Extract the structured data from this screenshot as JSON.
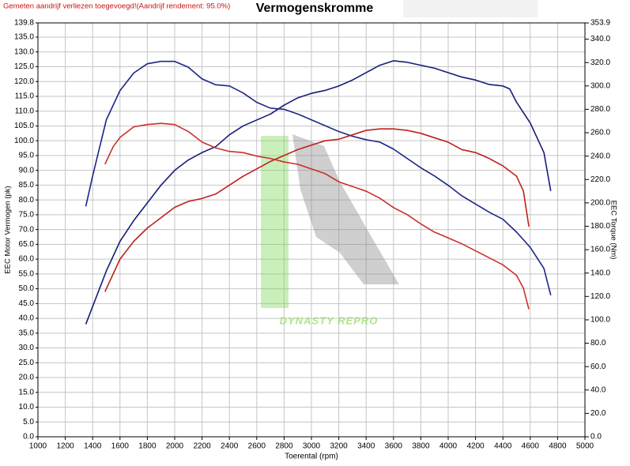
{
  "chart_data": {
    "type": "line",
    "title": "Vermogenskromme",
    "note": "Gemeten aandrijf verliezen toegevoegd!(Aandrijf rendement: 95.0%)",
    "x_label": "Toerental (rpm)",
    "y_label": "EEC Motor Vermogen (pk)",
    "y2_label": "EEC Torque (Nm)",
    "watermark": "DYNASTY REPRO",
    "grid": true,
    "xlim": [
      1000,
      5000
    ],
    "xticks": [
      1000,
      1200,
      1400,
      1600,
      1800,
      2000,
      2200,
      2400,
      2600,
      2800,
      3000,
      3200,
      3400,
      3600,
      3800,
      4000,
      4200,
      4400,
      4600,
      4800,
      5000
    ],
    "ylim": [
      0,
      139.8
    ],
    "yticks": [
      {
        "value": 0,
        "label": "0.0"
      },
      {
        "value": 5,
        "label": "5.0"
      },
      {
        "value": 10,
        "label": "10.0"
      },
      {
        "value": 15,
        "label": "15.0"
      },
      {
        "value": 20,
        "label": "20.0"
      },
      {
        "value": 25,
        "label": "25.0"
      },
      {
        "value": 30,
        "label": "30.0"
      },
      {
        "value": 35,
        "label": "35.0"
      },
      {
        "value": 40,
        "label": "40.0"
      },
      {
        "value": 45,
        "label": "45.0"
      },
      {
        "value": 50,
        "label": "50.0"
      },
      {
        "value": 55,
        "label": "55.0"
      },
      {
        "value": 60,
        "label": "60.0"
      },
      {
        "value": 65,
        "label": "65.0"
      },
      {
        "value": 70,
        "label": "70.0"
      },
      {
        "value": 75,
        "label": "75.0"
      },
      {
        "value": 80,
        "label": "80.0"
      },
      {
        "value": 85,
        "label": "85.0"
      },
      {
        "value": 90,
        "label": "90.0"
      },
      {
        "value": 95,
        "label": "95.0"
      },
      {
        "value": 100,
        "label": "100.0"
      },
      {
        "value": 105,
        "label": "105.0"
      },
      {
        "value": 110,
        "label": "110.0"
      },
      {
        "value": 115,
        "label": "115.0"
      },
      {
        "value": 120,
        "label": "120.0"
      },
      {
        "value": 125,
        "label": "125.0"
      },
      {
        "value": 130,
        "label": "130.0"
      },
      {
        "value": 135,
        "label": "135.0"
      },
      139.8
    ],
    "y2lim": [
      0,
      353.9
    ],
    "y2ticks": [
      {
        "value": 0,
        "label": "0.0"
      },
      {
        "value": 20,
        "label": "20.0"
      },
      {
        "value": 40,
        "label": "40.0"
      },
      {
        "value": 60,
        "label": "60.0"
      },
      {
        "value": 80,
        "label": "80.0"
      },
      {
        "value": 100,
        "label": "100.0"
      },
      {
        "value": 120,
        "label": "120.0"
      },
      {
        "value": 140,
        "label": "140.0"
      },
      {
        "value": 160,
        "label": "160.0"
      },
      {
        "value": 180,
        "label": "180.0"
      },
      {
        "value": 200,
        "label": "200.0"
      },
      {
        "value": 220,
        "label": "220.0"
      },
      {
        "value": 240,
        "label": "240.0"
      },
      {
        "value": 260,
        "label": "260.0"
      },
      {
        "value": 280,
        "label": "280.0"
      },
      {
        "value": 300,
        "label": "300.0"
      },
      {
        "value": 320,
        "label": "320.0"
      },
      {
        "value": 340,
        "label": "340.0"
      },
      353.9
    ],
    "series": [
      {
        "color": "#141c78",
        "x": [
          1350,
          1400,
          1500,
          1600,
          1700,
          1800,
          1900,
          2000,
          2100,
          2200,
          2300,
          2400,
          2500,
          2600,
          2700,
          2800,
          2900,
          3000,
          3100,
          3200,
          3300,
          3400,
          3500,
          3600,
          3700,
          3800,
          3900,
          4000,
          4100,
          4200,
          4300,
          4400,
          4450,
          4500,
          4600,
          4700,
          4750
        ],
        "values": [
          38,
          44,
          56,
          66,
          73,
          79,
          85,
          90,
          93.5,
          96,
          98,
          102,
          105,
          107,
          109,
          112,
          114.5,
          116,
          117,
          118.5,
          120.5,
          123,
          125.5,
          127,
          126.5,
          125.5,
          124.5,
          123,
          121.5,
          120.5,
          119,
          118.5,
          117.5,
          113,
          106,
          96,
          83
        ]
      },
      {
        "color": "#1c2588",
        "axis": "y2",
        "x": [
          1350,
          1400,
          1500,
          1600,
          1700,
          1800,
          1900,
          2000,
          2100,
          2200,
          2300,
          2400,
          2500,
          2600,
          2700,
          2800,
          2900,
          3000,
          3100,
          3200,
          3300,
          3400,
          3500,
          3600,
          3700,
          3800,
          3900,
          4000,
          4100,
          4200,
          4300,
          4400,
          4500,
          4600,
          4700,
          4750
        ],
        "values": [
          197,
          223,
          271,
          296,
          311,
          319,
          321,
          321,
          316,
          306,
          301,
          300,
          294,
          286,
          281,
          280,
          276,
          271,
          266,
          261,
          257,
          254,
          252,
          246,
          238,
          230,
          223,
          215,
          206,
          199,
          192,
          186,
          175,
          162,
          144,
          121
        ]
      },
      {
        "color": "#c0201c",
        "x": [
          1490,
          1600,
          1700,
          1800,
          1900,
          2000,
          2100,
          2200,
          2300,
          2400,
          2500,
          2600,
          2700,
          2800,
          2900,
          3000,
          3100,
          3200,
          3300,
          3400,
          3500,
          3600,
          3700,
          3800,
          3900,
          4000,
          4100,
          4200,
          4300,
          4400,
          4500,
          4550,
          4590
        ],
        "values": [
          49,
          60,
          66,
          70.5,
          74,
          77.5,
          79.5,
          80.5,
          82,
          85,
          88,
          90.5,
          93,
          95,
          97,
          98.5,
          100,
          100.5,
          102,
          103.5,
          104,
          104,
          103.5,
          102.5,
          101,
          99.5,
          97,
          96,
          94,
          91.5,
          88,
          83,
          71
        ]
      },
      {
        "color": "#c8302c",
        "axis": "y2",
        "x": [
          1490,
          1550,
          1600,
          1700,
          1800,
          1900,
          2000,
          2100,
          2200,
          2300,
          2400,
          2500,
          2600,
          2700,
          2800,
          2900,
          3000,
          3100,
          3200,
          3300,
          3400,
          3500,
          3600,
          3700,
          3800,
          3900,
          4000,
          4100,
          4200,
          4300,
          4400,
          4500,
          4550,
          4590
        ],
        "values": [
          233,
          248,
          256,
          265,
          267,
          268,
          267,
          261,
          252,
          247,
          244,
          243,
          240,
          238,
          235,
          233,
          229,
          225,
          218,
          214,
          210,
          204,
          196,
          190,
          182,
          175,
          170,
          165,
          159,
          153,
          147,
          138,
          127,
          109
        ]
      }
    ]
  }
}
